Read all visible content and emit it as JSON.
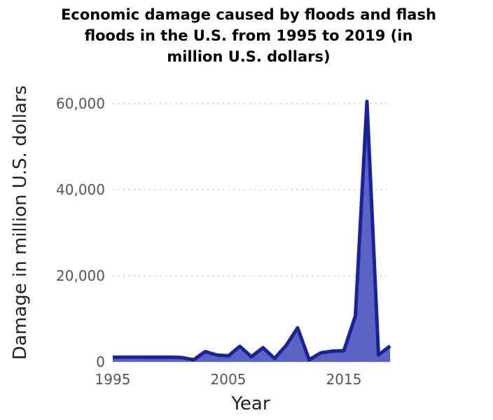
{
  "chart_data": {
    "type": "area",
    "title": [
      "Economic damage caused by floods and flash",
      "floods in the U.S. from 1995 to 2019 (in",
      "million U.S. dollars)"
    ],
    "x_label": "Year",
    "y_label": "Damage in million U.S. dollars",
    "x": [
      1995,
      1996,
      1997,
      1998,
      1999,
      2000,
      2001,
      2002,
      2003,
      2004,
      2005,
      2006,
      2007,
      2008,
      2009,
      2010,
      2011,
      2012,
      2013,
      2014,
      2015,
      2016,
      2017,
      2018,
      2019
    ],
    "values": [
      1100,
      1100,
      1100,
      1100,
      1100,
      1100,
      1000,
      500,
      2400,
      1600,
      1400,
      3600,
      1200,
      3300,
      800,
      3800,
      7900,
      500,
      2100,
      2500,
      2600,
      10700,
      60500,
      1600,
      3700
    ],
    "color": "#1a2299",
    "fill": "#5c63c4",
    "xlim": [
      1995,
      2019
    ],
    "xticks": [
      1995,
      2005,
      2015
    ],
    "ylim": [
      0,
      60000
    ],
    "yticks": [
      0,
      {
        "value": 20000,
        "label": "20,000"
      },
      {
        "value": 40000,
        "label": "40,000"
      },
      {
        "value": 60000,
        "label": "60,000"
      }
    ],
    "grid": true
  }
}
